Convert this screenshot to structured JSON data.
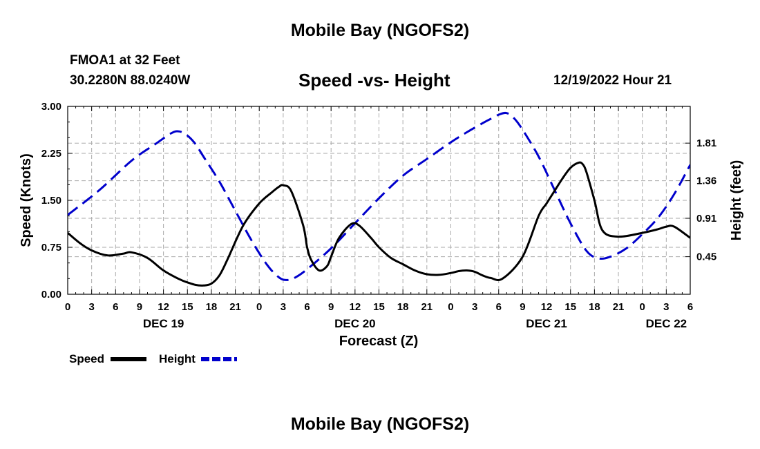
{
  "main_title": "Mobile Bay (NGOFS2)",
  "bottom_title": "Mobile Bay (NGOFS2)",
  "station": "FMOA1 at 32 Feet",
  "coords": "30.2280N  88.0240W",
  "run_time": "12/19/2022 Hour 21",
  "chart_data": {
    "type": "line",
    "title": "Speed -vs- Height",
    "xlabel": "Forecast (Z)",
    "ylabel_left": "Speed (Knots)",
    "ylabel_right": "Height (feet)",
    "x_range": [
      0,
      78
    ],
    "x_ticks": [
      0,
      3,
      6,
      9,
      12,
      15,
      18,
      21,
      24,
      27,
      30,
      33,
      36,
      39,
      42,
      45,
      48,
      51,
      54,
      57,
      60,
      63,
      66,
      69,
      72,
      75,
      78
    ],
    "x_tick_labels": [
      "0",
      "3",
      "6",
      "9",
      "12",
      "15",
      "18",
      "21",
      "0",
      "3",
      "6",
      "9",
      "12",
      "15",
      "18",
      "21",
      "0",
      "3",
      "6",
      "9",
      "12",
      "15",
      "18",
      "21",
      "0",
      "3",
      "6"
    ],
    "day_labels": [
      {
        "x": 12,
        "label": "DEC 19"
      },
      {
        "x": 36,
        "label": "DEC 20"
      },
      {
        "x": 60,
        "label": "DEC 21"
      },
      {
        "x": 75,
        "label": "DEC 22"
      }
    ],
    "y_left": {
      "range": [
        0,
        3
      ],
      "ticks": [
        0,
        0.75,
        1.5,
        2.25,
        3.0
      ],
      "tick_labels": [
        "0.00",
        "0.75",
        "1.50",
        "2.25",
        "3.00"
      ]
    },
    "y_right": {
      "range": [
        0,
        2.25
      ],
      "ticks": [
        0.45,
        0.91,
        1.36,
        1.81
      ],
      "tick_labels": [
        "0.45",
        "0.91",
        "1.36",
        "1.81"
      ]
    },
    "legend": [
      {
        "name": "Speed",
        "color": "#000000",
        "style": "solid"
      },
      {
        "name": "Height",
        "color": "#0000cc",
        "style": "dashed"
      }
    ],
    "series": [
      {
        "name": "Speed",
        "axis": "left",
        "color": "#000000",
        "x": [
          0,
          1.5,
          3,
          5,
          7,
          8,
          10,
          12,
          14,
          15,
          16,
          17,
          18,
          19,
          20,
          22,
          24,
          25.5,
          26.5,
          27,
          28,
          29.5,
          30,
          30.5,
          31.5,
          32.5,
          33,
          34,
          35.5,
          36.5,
          38,
          39,
          40.5,
          42,
          43.5,
          45,
          46.5,
          48,
          49,
          50,
          51,
          52,
          53,
          54.5,
          57,
          59,
          60,
          61,
          62,
          63,
          64,
          64.5,
          65,
          66,
          67,
          69,
          72,
          74,
          75,
          76,
          78
        ],
        "values": [
          0.98,
          0.82,
          0.7,
          0.62,
          0.65,
          0.67,
          0.58,
          0.38,
          0.24,
          0.19,
          0.15,
          0.14,
          0.17,
          0.3,
          0.55,
          1.1,
          1.45,
          1.62,
          1.72,
          1.74,
          1.65,
          1.1,
          0.75,
          0.55,
          0.38,
          0.45,
          0.6,
          0.9,
          1.12,
          1.1,
          0.9,
          0.75,
          0.58,
          0.48,
          0.38,
          0.32,
          0.31,
          0.34,
          0.37,
          0.38,
          0.36,
          0.3,
          0.26,
          0.25,
          0.6,
          1.25,
          1.45,
          1.65,
          1.85,
          2.02,
          2.1,
          2.08,
          1.95,
          1.5,
          1.02,
          0.92,
          0.98,
          1.04,
          1.08,
          1.08,
          0.9
        ]
      },
      {
        "name": "Height",
        "axis": "right",
        "color": "#0000cc",
        "x": [
          0,
          4,
          8,
          11,
          13,
          14,
          15,
          16,
          17,
          19,
          21,
          23,
          25,
          26.5,
          27.5,
          28.5,
          30,
          33,
          36,
          39,
          42,
          45,
          48,
          50,
          52,
          53,
          54,
          55,
          56,
          57,
          59,
          61,
          63,
          65,
          66.5,
          68,
          70,
          72,
          74,
          76,
          78
        ],
        "values": [
          0.95,
          1.25,
          1.6,
          1.8,
          1.93,
          1.95,
          1.9,
          1.8,
          1.65,
          1.35,
          1.0,
          0.65,
          0.35,
          0.2,
          0.17,
          0.2,
          0.3,
          0.55,
          0.85,
          1.15,
          1.42,
          1.62,
          1.82,
          1.94,
          2.05,
          2.1,
          2.15,
          2.17,
          2.1,
          1.97,
          1.65,
          1.25,
          0.85,
          0.52,
          0.43,
          0.45,
          0.55,
          0.72,
          0.92,
          1.2,
          1.55
        ]
      }
    ]
  }
}
